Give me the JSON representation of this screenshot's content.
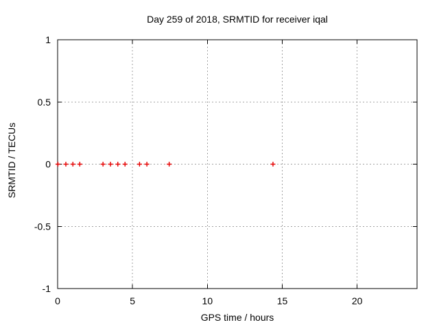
{
  "chart_data": {
    "type": "scatter",
    "title": "Day 259 of 2018, SRMTID for receiver iqal",
    "xlabel": "GPS time / hours",
    "ylabel": "SRMTID / TECUs",
    "xlim": [
      0,
      24
    ],
    "ylim": [
      -1,
      1
    ],
    "xticks": [
      0,
      5,
      10,
      15,
      20
    ],
    "yticks": [
      -1,
      -0.5,
      0,
      0.5,
      1
    ],
    "grid": true,
    "legend_position": "none",
    "series": [
      {
        "name": "SRMTID",
        "marker": "plus",
        "marker_color": "#e60000",
        "x": [
          0.02,
          0.55,
          1.02,
          1.48,
          3.03,
          3.53,
          4.02,
          4.5,
          5.47,
          5.96,
          7.45,
          14.38
        ],
        "y": [
          0,
          0,
          0,
          0,
          0,
          0,
          0,
          0,
          0,
          0,
          0,
          0
        ]
      }
    ],
    "colors": {
      "background": "#ffffff",
      "border": "#000000",
      "grid": "#a0a0a0",
      "text": "#000000"
    }
  }
}
